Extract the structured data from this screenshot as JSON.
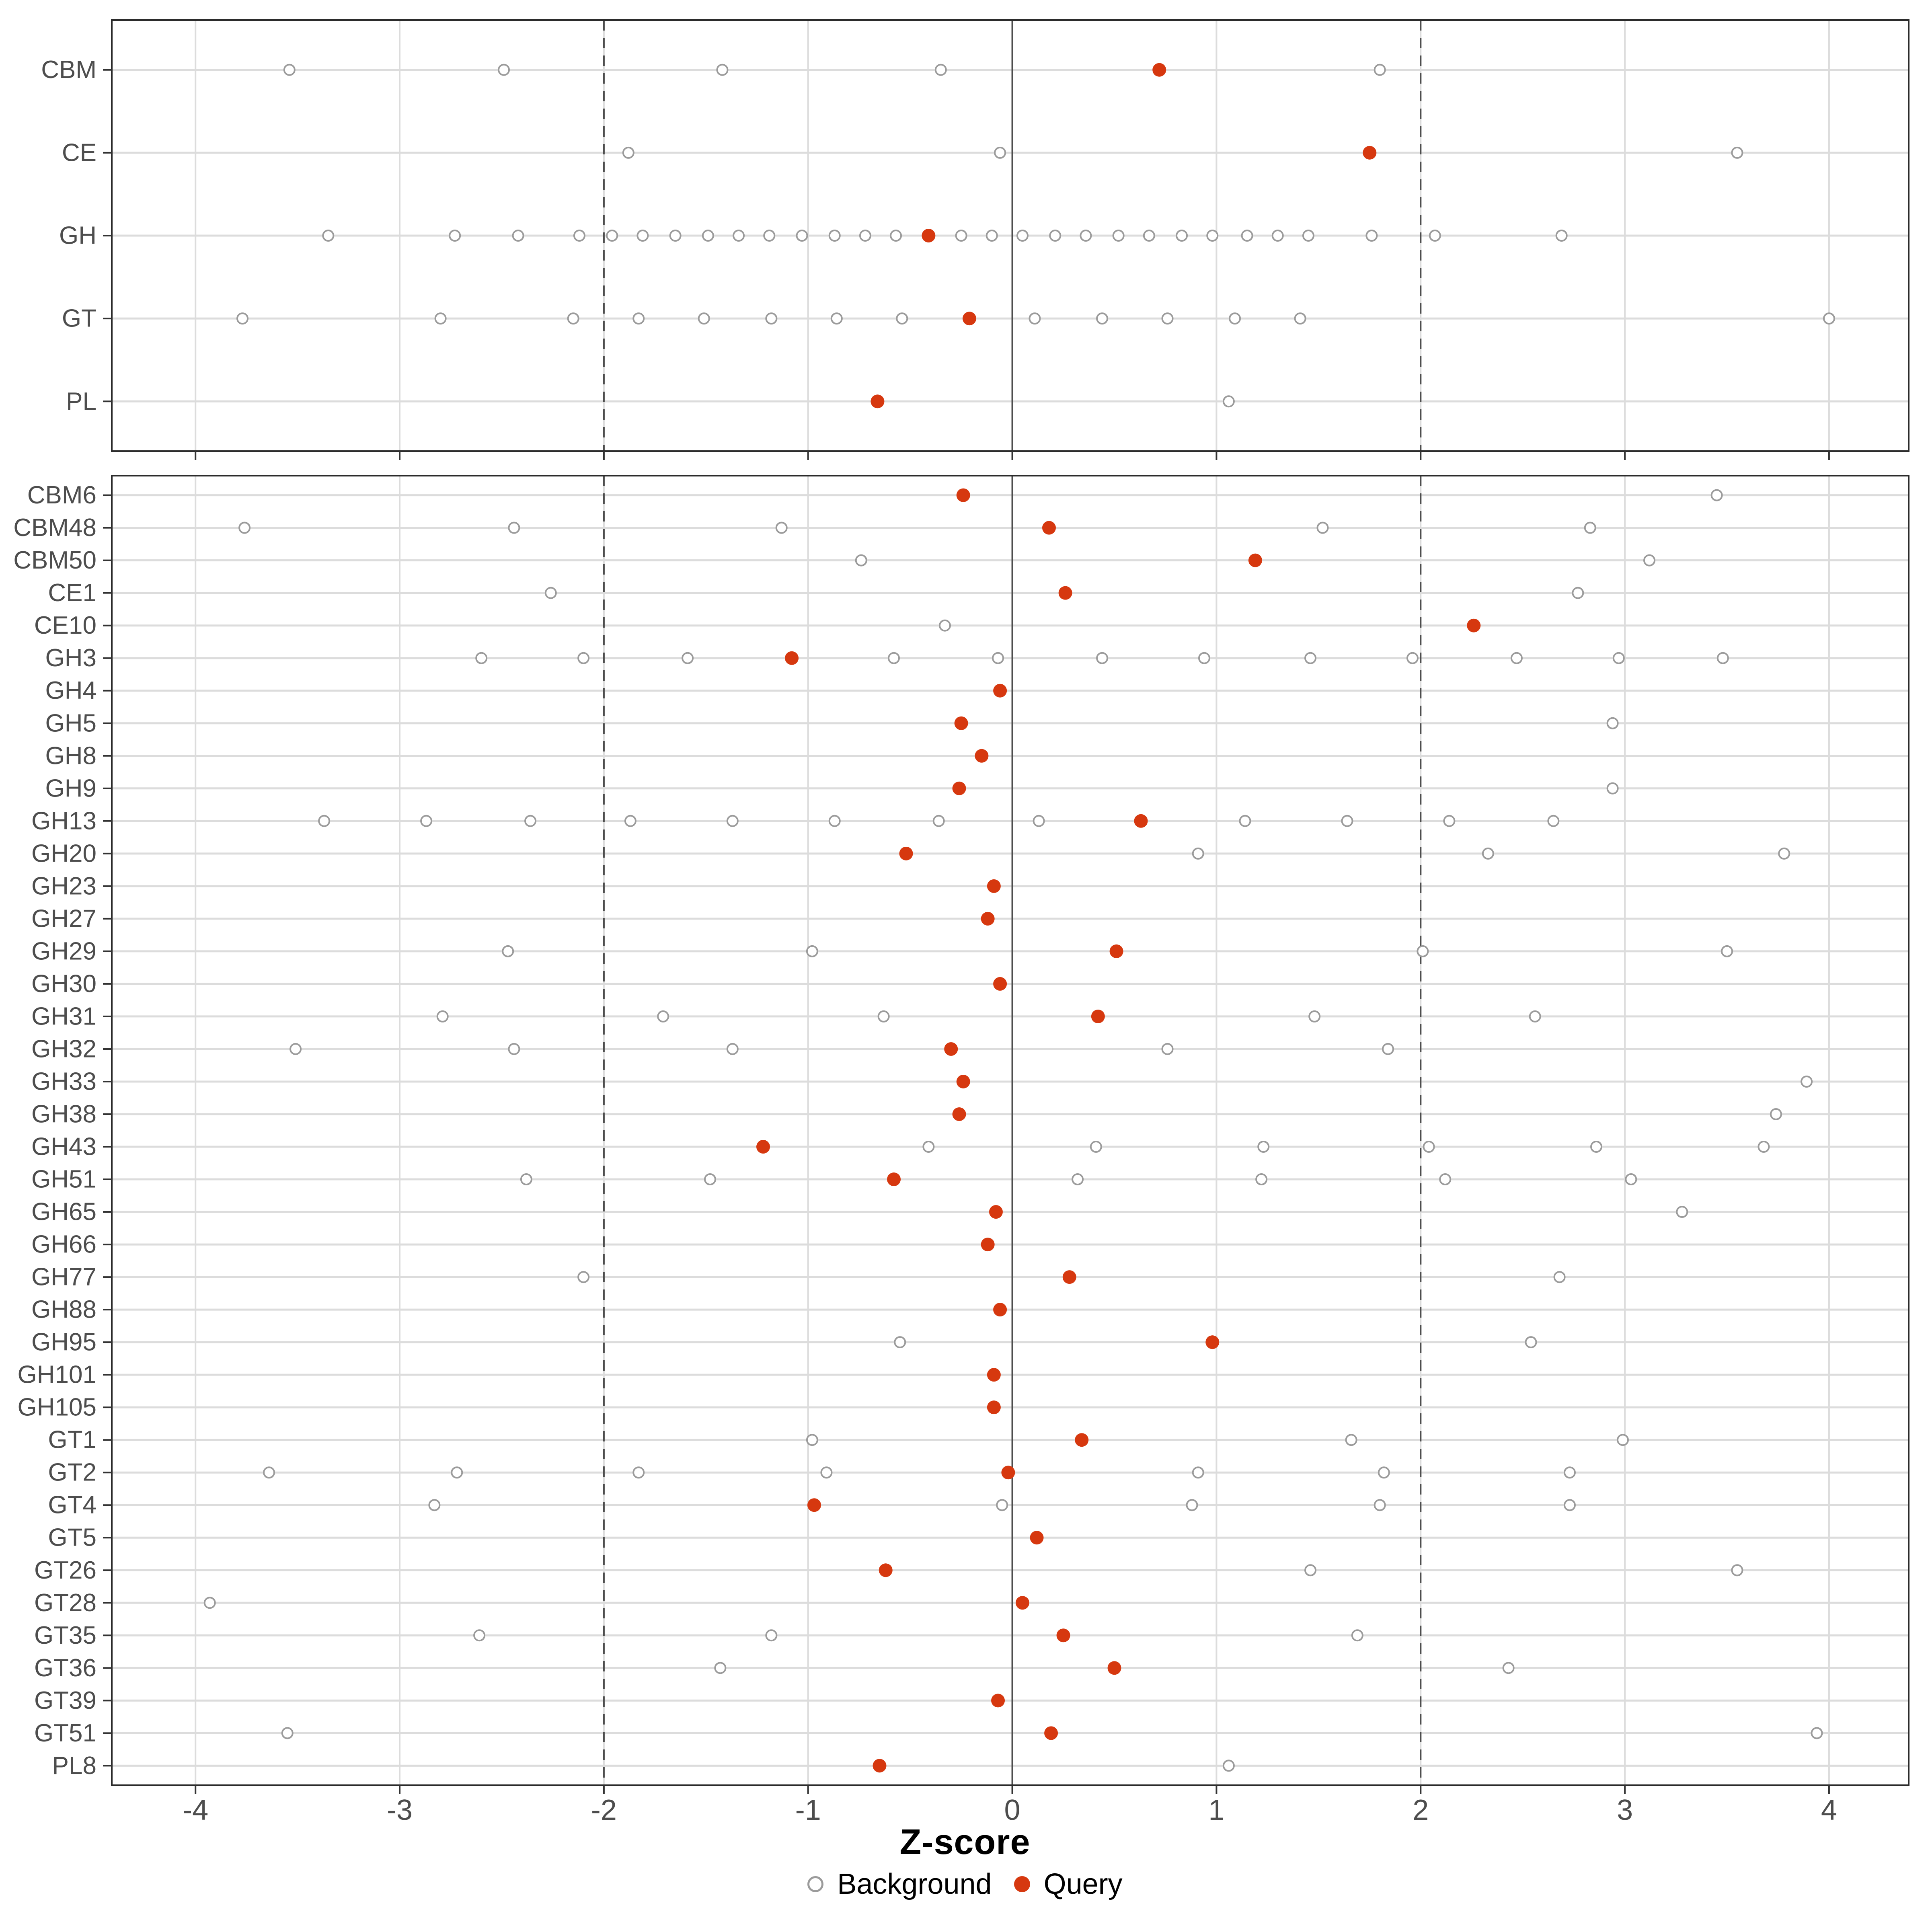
{
  "axis": {
    "xlabel": "Z-score",
    "x_ticks": [
      -4,
      -3,
      -2,
      -1,
      0,
      1,
      2,
      3,
      4
    ]
  },
  "legend": {
    "background_label": "Background",
    "query_label": "Query"
  },
  "colors": {
    "query": "#d6380f",
    "background_stroke": "#9b9b9b",
    "gridline": "#dcdcdc",
    "panel_border": "#2b2b2b",
    "ref_line": "#4d4d4d",
    "axis_text": "#4d4d4d",
    "title_text": "#000000"
  },
  "chart_data": {
    "type": "scatter",
    "title": "",
    "xlabel": "Z-score",
    "ylabel": "",
    "xlim": [
      -4.41,
      4.39
    ],
    "x_ticks": [
      -4,
      -3,
      -2,
      -1,
      0,
      1,
      2,
      3,
      4
    ],
    "grid": true,
    "legend_position": "bottom",
    "ref_lines": {
      "solid": [
        0
      ],
      "dashed": [
        -2,
        2
      ]
    },
    "series_legend": [
      "Background",
      "Query"
    ],
    "panels": [
      {
        "name": "classes",
        "rows": [
          {
            "label": "CBM",
            "background": [
              -3.54,
              -2.49,
              -1.42,
              -0.35,
              1.8
            ],
            "query": 0.72
          },
          {
            "label": "CE",
            "background": [
              -1.88,
              -0.06,
              3.55
            ],
            "query": 1.75
          },
          {
            "label": "GH",
            "background": [
              -3.35,
              -2.73,
              -2.42,
              -2.12,
              -1.96,
              -1.81,
              -1.65,
              -1.49,
              -1.34,
              -1.19,
              -1.03,
              -0.87,
              -0.72,
              -0.57,
              -0.25,
              -0.1,
              0.05,
              0.21,
              0.36,
              0.52,
              0.67,
              0.83,
              0.98,
              1.15,
              1.3,
              1.45,
              1.76,
              2.07,
              2.69
            ],
            "query": -0.41
          },
          {
            "label": "GT",
            "background": [
              -3.77,
              -2.8,
              -2.15,
              -1.83,
              -1.51,
              -1.18,
              -0.86,
              -0.54,
              0.11,
              0.44,
              0.76,
              1.09,
              1.41,
              4.0
            ],
            "query": -0.21
          },
          {
            "label": "PL",
            "background": [
              1.06
            ],
            "query": -0.66
          }
        ]
      },
      {
        "name": "families",
        "rows": [
          {
            "label": "CBM6",
            "background": [
              3.45
            ],
            "query": -0.24
          },
          {
            "label": "CBM48",
            "background": [
              -3.76,
              -2.44,
              -1.13,
              1.52,
              2.83
            ],
            "query": 0.18
          },
          {
            "label": "CBM50",
            "background": [
              -0.74,
              3.12
            ],
            "query": 1.19
          },
          {
            "label": "CE1",
            "background": [
              -2.26,
              2.77
            ],
            "query": 0.26
          },
          {
            "label": "CE10",
            "background": [
              -0.33
            ],
            "query": 2.26
          },
          {
            "label": "GH3",
            "background": [
              -2.6,
              -2.1,
              -1.59,
              -0.58,
              -0.07,
              0.44,
              0.94,
              1.46,
              1.96,
              2.47,
              2.97,
              3.48
            ],
            "query": -1.08
          },
          {
            "label": "GH4",
            "background": [],
            "query": -0.06
          },
          {
            "label": "GH5",
            "background": [
              2.94
            ],
            "query": -0.25
          },
          {
            "label": "GH8",
            "background": [],
            "query": -0.15
          },
          {
            "label": "GH9",
            "background": [
              2.94
            ],
            "query": -0.26
          },
          {
            "label": "GH13",
            "background": [
              -3.37,
              -2.87,
              -2.36,
              -1.87,
              -1.37,
              -0.87,
              -0.36,
              0.13,
              1.14,
              1.64,
              2.14,
              2.65
            ],
            "query": 0.63
          },
          {
            "label": "GH20",
            "background": [
              0.91,
              2.33,
              3.78
            ],
            "query": -0.52
          },
          {
            "label": "GH23",
            "background": [],
            "query": -0.09
          },
          {
            "label": "GH27",
            "background": [],
            "query": -0.12
          },
          {
            "label": "GH29",
            "background": [
              -2.47,
              -0.98,
              2.01,
              3.5
            ],
            "query": 0.51
          },
          {
            "label": "GH30",
            "background": [],
            "query": -0.06
          },
          {
            "label": "GH31",
            "background": [
              -2.79,
              -1.71,
              -0.63,
              1.48,
              2.56
            ],
            "query": 0.42
          },
          {
            "label": "GH32",
            "background": [
              -3.51,
              -2.44,
              -1.37,
              0.76,
              1.84
            ],
            "query": -0.3
          },
          {
            "label": "GH33",
            "background": [
              3.89
            ],
            "query": -0.24
          },
          {
            "label": "GH38",
            "background": [
              3.74
            ],
            "query": -0.26
          },
          {
            "label": "GH43",
            "background": [
              -0.41,
              0.41,
              1.23,
              2.04,
              2.86,
              3.68
            ],
            "query": -1.22
          },
          {
            "label": "GH51",
            "background": [
              -2.38,
              -1.48,
              0.32,
              1.22,
              2.12,
              3.03
            ],
            "query": -0.58
          },
          {
            "label": "GH65",
            "background": [
              3.28
            ],
            "query": -0.08
          },
          {
            "label": "GH66",
            "background": [],
            "query": -0.12
          },
          {
            "label": "GH77",
            "background": [
              -2.1,
              2.68
            ],
            "query": 0.28
          },
          {
            "label": "GH88",
            "background": [],
            "query": -0.06
          },
          {
            "label": "GH95",
            "background": [
              -0.55,
              2.54
            ],
            "query": 0.98
          },
          {
            "label": "GH101",
            "background": [],
            "query": -0.09
          },
          {
            "label": "GH105",
            "background": [],
            "query": -0.09
          },
          {
            "label": "GT1",
            "background": [
              -0.98,
              1.66,
              2.99
            ],
            "query": 0.34
          },
          {
            "label": "GT2",
            "background": [
              -3.64,
              -2.72,
              -1.83,
              -0.91,
              0.91,
              1.82,
              2.73
            ],
            "query": -0.02
          },
          {
            "label": "GT4",
            "background": [
              -2.83,
              -0.05,
              0.88,
              1.8,
              2.73
            ],
            "query": -0.97
          },
          {
            "label": "GT5",
            "background": [],
            "query": 0.12
          },
          {
            "label": "GT26",
            "background": [
              1.46,
              3.55
            ],
            "query": -0.62
          },
          {
            "label": "GT28",
            "background": [
              -3.93
            ],
            "query": 0.05
          },
          {
            "label": "GT35",
            "background": [
              -2.61,
              -1.18,
              1.69
            ],
            "query": 0.25
          },
          {
            "label": "GT36",
            "background": [
              -1.43,
              2.43
            ],
            "query": 0.5
          },
          {
            "label": "GT39",
            "background": [],
            "query": -0.07
          },
          {
            "label": "GT51",
            "background": [
              -3.55,
              3.94
            ],
            "query": 0.19
          },
          {
            "label": "PL8",
            "background": [
              1.06
            ],
            "query": -0.65
          }
        ]
      }
    ]
  }
}
